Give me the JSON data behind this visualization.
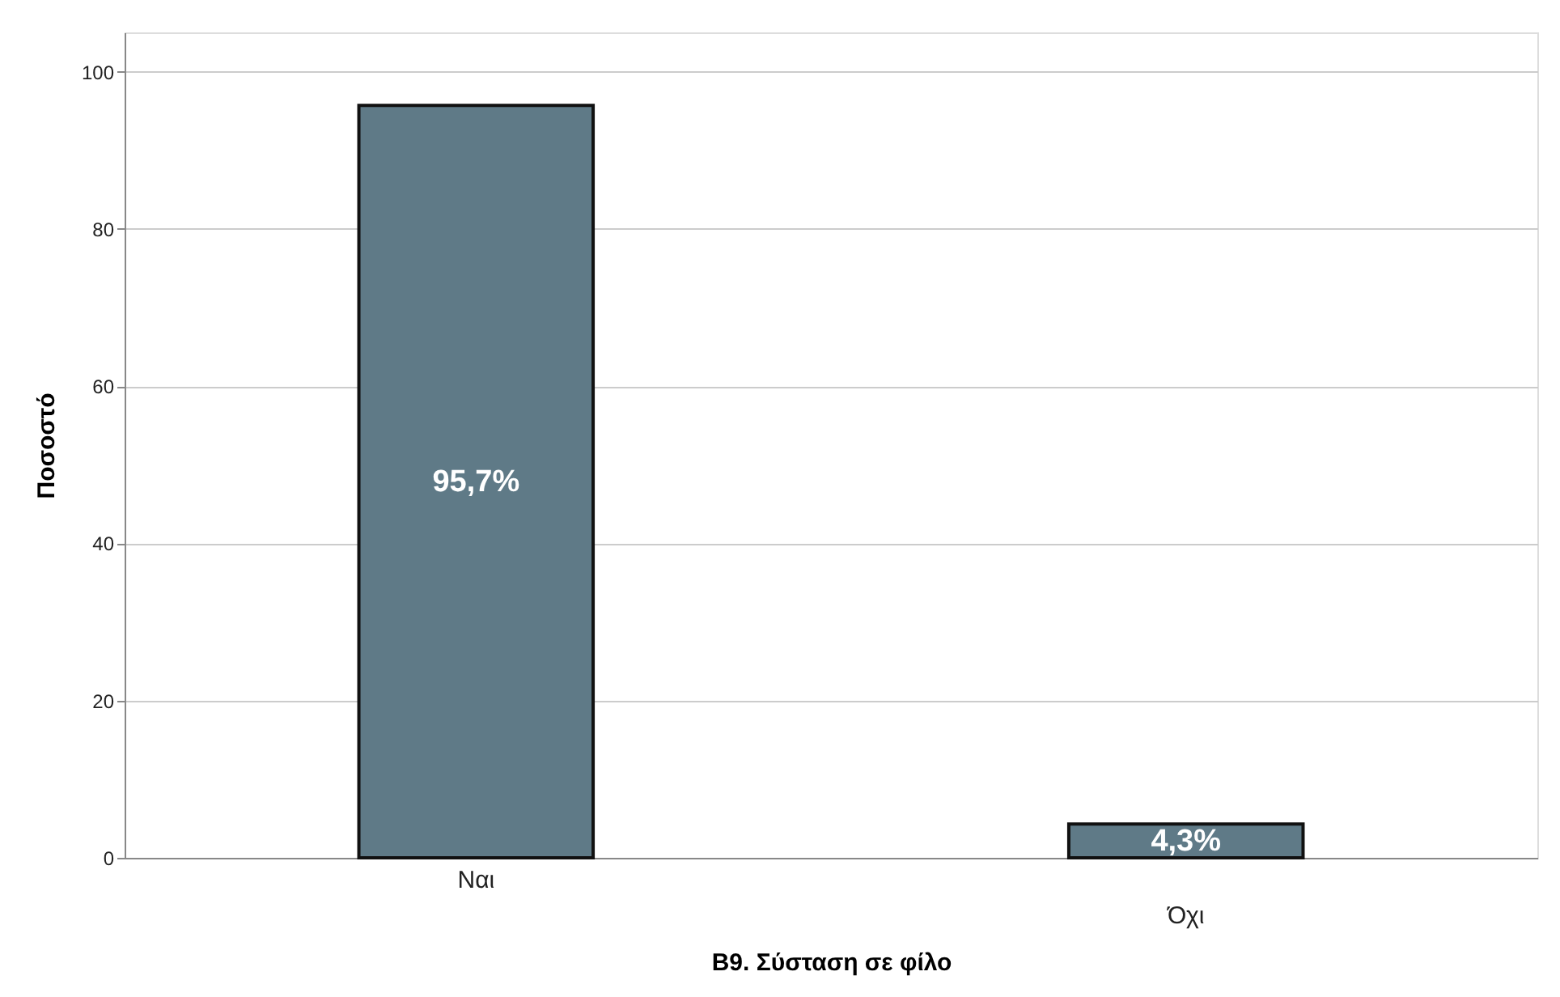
{
  "chart_data": {
    "type": "bar",
    "xlabel": "B9. Σύσταση σε φίλο",
    "ylabel": "Ποσοστό",
    "categories": [
      "Ναι",
      "Όχι"
    ],
    "values": [
      95.7,
      4.3
    ],
    "value_labels": [
      "95,7%",
      "4,3%"
    ],
    "color": "#5f7a87",
    "ylim": [
      0,
      105
    ],
    "yticks": [
      0,
      20,
      40,
      60,
      80,
      100
    ],
    "grid": "y"
  }
}
